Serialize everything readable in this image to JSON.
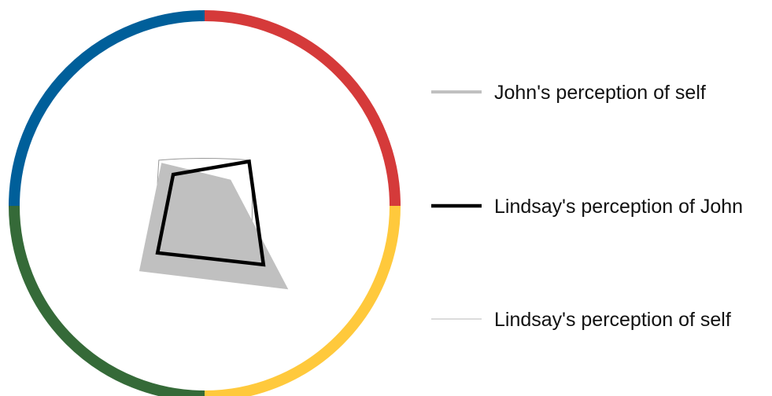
{
  "chart_data": {
    "type": "radar",
    "title": "",
    "axes": [
      "red",
      "yellow",
      "green",
      "blue"
    ],
    "quadrant_colors": [
      "#D53A3A",
      "#FFC93C",
      "#356A38",
      "#005F9A"
    ],
    "range": [
      0,
      1
    ],
    "grid": false,
    "legend_position": "right",
    "series": [
      {
        "name": "John's perception of self",
        "style": "filled",
        "color": "#C0C0C0",
        "values": [
          0.2,
          0.64,
          0.5,
          0.33
        ]
      },
      {
        "name": "Lindsay's perception of John",
        "style": "line-thick",
        "color": "#000000",
        "values": [
          0.34,
          0.45,
          0.36,
          0.24
        ]
      },
      {
        "name": "Lindsay's perception of self",
        "style": "line-thin",
        "color": "#999999",
        "values": [
          0.35,
          0.35,
          0.35,
          0.35
        ]
      }
    ]
  }
}
